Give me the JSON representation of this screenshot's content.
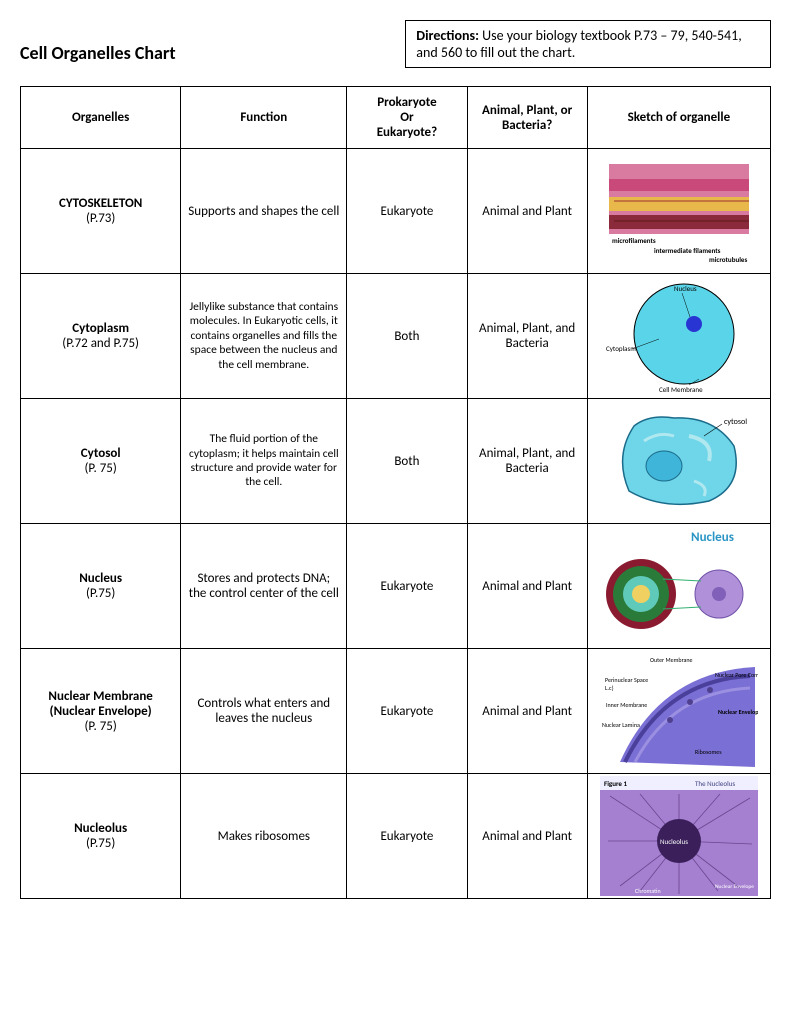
{
  "page": {
    "title": "Cell Organelles Chart",
    "directions_label": "Directions:",
    "directions_text": " Use your biology textbook P.73 – 79, 540-541, and 560 to fill out the chart."
  },
  "table": {
    "headers": {
      "organelles": "Organelles",
      "function": "Function",
      "prokaryote": "Prokaryote\nOr\nEukaryote?",
      "kingdom": "Animal, Plant, or Bacteria?",
      "sketch": "Sketch of organelle"
    },
    "rows": [
      {
        "name": "CYTOSKELETON",
        "page": "(P.73)",
        "function": "Supports and shapes the cell",
        "cell_type": "Eukaryote",
        "kingdom": "Animal and Plant",
        "sketch_labels": {
          "a": "microfilaments",
          "b": "intermediate filaments",
          "c": "microtubules"
        },
        "sketch_colors": {
          "bg": "#d97aa0",
          "layer1": "#c94a7a",
          "layer2": "#e8b84a",
          "layer3": "#8b2a3a"
        }
      },
      {
        "name": "Cytoplasm",
        "page": "(P.72 and P.75)",
        "function": "Jellylike substance that contains molecules. In Eukaryotic cells, it contains organelles and fills the space between the nucleus and the cell membrane.",
        "function_small": true,
        "cell_type": "Both",
        "kingdom": "Animal, Plant, and Bacteria",
        "sketch_labels": {
          "a": "Nucleus",
          "b": "Cytoplasm",
          "c": "Cell Membrane"
        },
        "sketch_colors": {
          "cell": "#5ad4e8",
          "nucleus": "#2935d3",
          "border": "#000000"
        }
      },
      {
        "name": "Cytosol",
        "page": "(P. 75)",
        "function": "The fluid portion of the cytoplasm; it helps maintain cell structure and provide water for the cell.",
        "function_small": true,
        "cell_type": "Both",
        "kingdom": "Animal, Plant, and Bacteria",
        "sketch_labels": {
          "a": "cytosol"
        },
        "sketch_colors": {
          "cell": "#6fd5e8",
          "nucleus": "#3fb5d9",
          "organelle": "#b0e8f0",
          "border": "#1a6b8a"
        }
      },
      {
        "name": "Nucleus",
        "page": "(P.75)",
        "function": "Stores and protects DNA; the control center of the cell",
        "cell_type": "Eukaryote",
        "kingdom": "Animal and Plant",
        "sketch_labels": {
          "a": "Nucleus"
        },
        "sketch_colors": {
          "outer": "#8a1a2f",
          "mid": "#2a7a3a",
          "inner": "#f0d060",
          "simple": "#b090d8",
          "accent": "#5fcab9"
        }
      },
      {
        "name": "Nuclear Membrane (Nuclear Envelope)",
        "page": "(P. 75)",
        "function": "Controls what enters and leaves the nucleus",
        "cell_type": "Eukaryote",
        "kingdom": "Animal and Plant",
        "sketch_labels": {
          "a": "Outer Membrane",
          "b": "Perinuclear Space",
          "c": "Inner Membrane",
          "d": "Nuclear Lamina",
          "e": "Nuclear Pore Complex",
          "f": "Nuclear Envelope Anatomy",
          "g": "Ribosomes"
        },
        "sketch_colors": {
          "membrane": "#7a6fd4",
          "shade": "#4a3f9a",
          "label": "#000000"
        }
      },
      {
        "name": "Nucleolus",
        "page": "(P.75)",
        "function": "Makes ribosomes",
        "cell_type": "Eukaryote",
        "kingdom": "Animal and Plant",
        "sketch_labels": {
          "a": "Figure 1",
          "b": "The Nucleolus",
          "c": "Nucleolus",
          "d": "Chromatin",
          "e": "Nuclear Envelope"
        },
        "sketch_colors": {
          "bg": "#a580d0",
          "nucleolus": "#3a1f5a",
          "fibers": "#6a4590"
        }
      }
    ]
  }
}
